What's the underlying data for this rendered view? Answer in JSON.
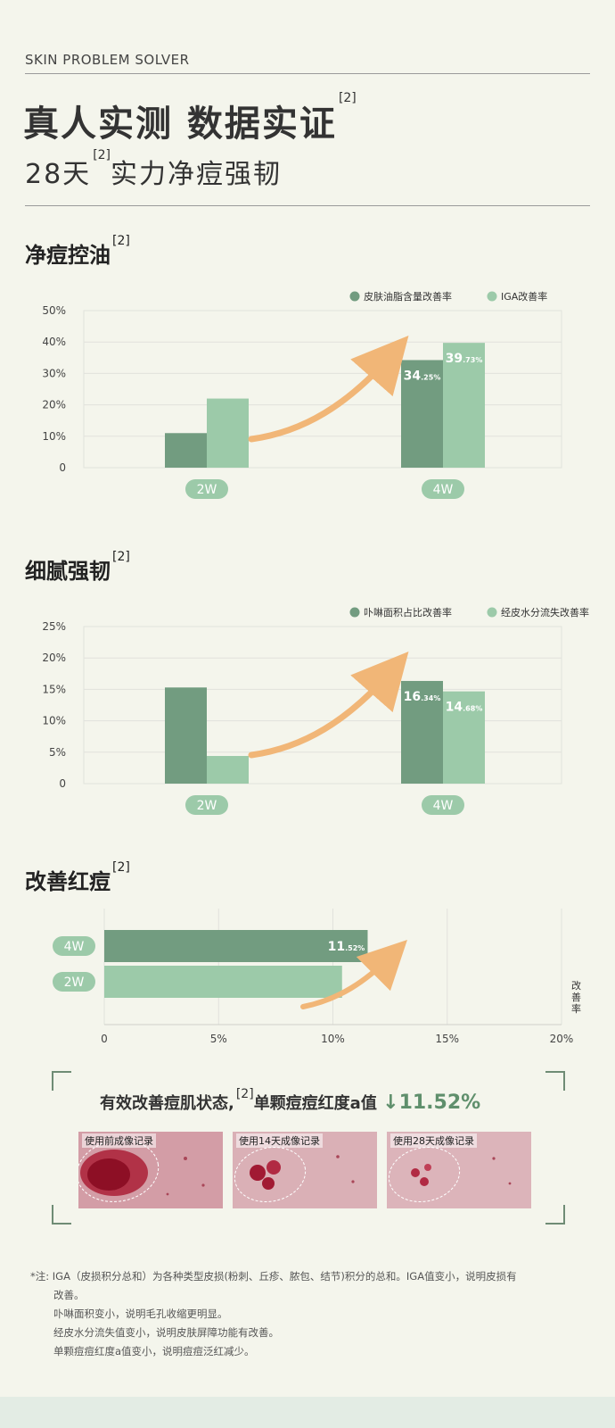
{
  "header": {
    "brand": "SKIN PROBLEM SOLVER",
    "headline": "真人实测 数据实证",
    "headline_ref": "[2]",
    "subhead_a": "28天",
    "subhead_ref": "[2]",
    "subhead_b": "实力净痘强韧"
  },
  "sections": [
    {
      "title": "净痘控油",
      "ref": "[2]"
    },
    {
      "title": "细腻强韧",
      "ref": "[2]"
    },
    {
      "title": "改善红痘",
      "ref": "[2]"
    }
  ],
  "colors": {
    "dark": "#729c80",
    "light": "#9ccaa9",
    "arrow": "#f1b677",
    "grid": "#e1e2dc"
  },
  "chart_data": [
    {
      "type": "bar",
      "categories": [
        "2W",
        "4W"
      ],
      "series": [
        {
          "name": "皮肤油脂含量改善率",
          "values": [
            11,
            34.25
          ],
          "labels": [
            "",
            "34.25%"
          ]
        },
        {
          "name": "IGA改善率",
          "values": [
            22,
            39.73
          ],
          "labels": [
            "",
            "39.73%"
          ]
        }
      ],
      "yticks": [
        "0",
        "10%",
        "20%",
        "30%",
        "40%",
        "50%"
      ],
      "ylim": [
        0,
        50
      ],
      "legend": "top-right",
      "grid": true
    },
    {
      "type": "bar",
      "categories": [
        "2W",
        "4W"
      ],
      "series": [
        {
          "name": "卟啉面积占比改善率",
          "values": [
            15.3,
            16.34
          ],
          "labels": [
            "",
            "16.34%"
          ]
        },
        {
          "name": "经皮水分流失改善率",
          "values": [
            4.4,
            14.68
          ],
          "labels": [
            "",
            "14.68%"
          ]
        }
      ],
      "yticks": [
        "0",
        "5%",
        "10%",
        "15%",
        "20%",
        "25%"
      ],
      "ylim": [
        0,
        25
      ],
      "legend": "top-right",
      "grid": true
    },
    {
      "type": "bar",
      "orientation": "horizontal",
      "categories": [
        "4W",
        "2W"
      ],
      "values": [
        11.52,
        10.4
      ],
      "labels": [
        "11.52%",
        ""
      ],
      "xticks": [
        "0",
        "5%",
        "10%",
        "15%",
        "20%"
      ],
      "xlim": [
        0,
        20
      ],
      "ylabel": "改善率",
      "grid": true
    }
  ],
  "summary": {
    "text": "有效改善痘肌状态,",
    "ref": "[2]",
    "text2": "单颗痘痘红度a值",
    "arrow": "↓",
    "value": "11.52%"
  },
  "photos": [
    {
      "label": "使用前成像记录"
    },
    {
      "label": "使用14天成像记录"
    },
    {
      "label": "使用28天成像记录"
    }
  ],
  "notes": {
    "n1": "*注: IGA（皮损积分总和）为各种类型皮损(粉刺、丘疹、脓包、结节)积分的总和。IGA值变小，说明皮损有",
    "n1b": "改善。",
    "n2": "卟啉面积变小，说明毛孔收缩更明显。",
    "n3": "经皮水分流失值变小，说明皮肤屏障功能有改善。",
    "n4": "单颗痘痘红度a值变小，说明痘痘泛红减少。"
  }
}
